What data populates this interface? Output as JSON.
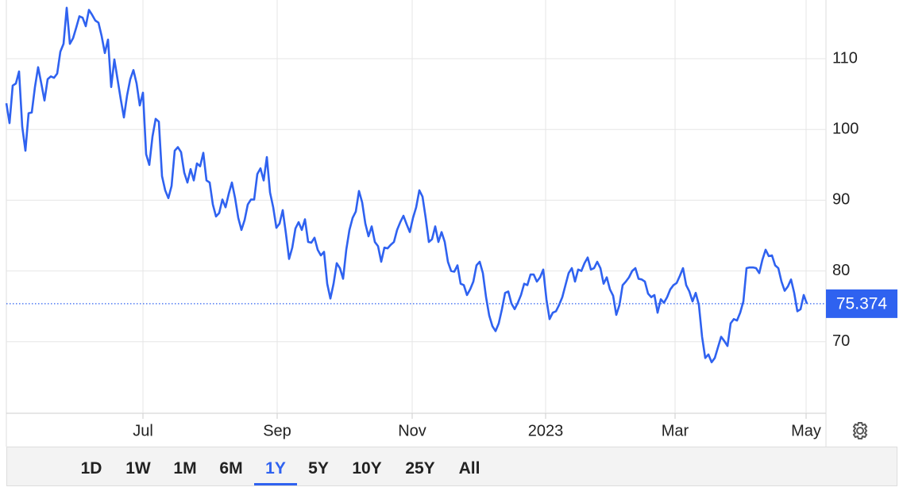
{
  "chart_data": {
    "type": "line",
    "series": [
      {
        "color": "#2f62f0",
        "values": [
          103.7,
          100.9,
          106.2,
          106.5,
          108.2,
          100.4,
          97.0,
          102.3,
          102.4,
          106.0,
          108.8,
          106.5,
          104.1,
          107.1,
          107.5,
          107.3,
          107.9,
          111.0,
          112.1,
          117.2,
          112.1,
          112.9,
          114.4,
          116.0,
          115.8,
          114.6,
          116.9,
          116.2,
          115.4,
          115.1,
          113.2,
          110.8,
          112.7,
          106.0,
          109.9,
          107.1,
          104.3,
          101.7,
          104.8,
          107.1,
          108.4,
          106.5,
          103.4,
          105.2,
          96.5,
          95.0,
          99.0,
          101.5,
          101.1,
          93.4,
          91.4,
          90.3,
          92.0,
          97.0,
          97.5,
          96.8,
          93.9,
          92.5,
          94.4,
          92.8,
          95.2,
          94.8,
          96.7,
          92.8,
          92.5,
          89.4,
          87.7,
          88.2,
          90.1,
          89.0,
          90.9,
          92.5,
          90.3,
          87.5,
          85.8,
          87.2,
          89.4,
          90.1,
          90.1,
          93.7,
          94.5,
          92.8,
          96.1,
          91.1,
          89.0,
          86.1,
          86.7,
          88.6,
          85.3,
          81.7,
          83.3,
          86.0,
          86.9,
          85.8,
          87.3,
          84.1,
          84.0,
          84.7,
          83.0,
          82.2,
          82.7,
          78.2,
          76.1,
          78.2,
          81.1,
          80.4,
          78.9,
          83.0,
          85.8,
          87.5,
          88.4,
          91.3,
          89.7,
          86.7,
          84.9,
          86.3,
          84.1,
          83.5,
          81.3,
          83.3,
          83.2,
          83.7,
          84.1,
          85.8,
          86.9,
          87.8,
          86.6,
          85.5,
          87.5,
          89.0,
          91.4,
          90.5,
          87.5,
          84.1,
          84.5,
          86.3,
          84.1,
          85.5,
          84.1,
          81.3,
          80.0,
          79.9,
          80.8,
          78.2,
          78.0,
          76.6,
          77.4,
          78.5,
          80.8,
          81.3,
          79.7,
          76.3,
          73.7,
          72.2,
          71.5,
          72.6,
          74.6,
          76.9,
          77.1,
          75.4,
          74.6,
          75.5,
          76.6,
          78.2,
          78.0,
          79.5,
          79.5,
          78.5,
          79.1,
          80.2,
          76.0,
          73.2,
          74.1,
          74.3,
          75.2,
          76.3,
          78.0,
          79.7,
          80.4,
          78.5,
          80.2,
          80.0,
          81.1,
          81.9,
          80.2,
          80.4,
          81.3,
          80.4,
          78.2,
          79.1,
          77.4,
          76.5,
          73.8,
          75.2,
          78.0,
          78.5,
          79.1,
          80.0,
          80.4,
          78.9,
          78.8,
          78.5,
          76.8,
          76.3,
          76.6,
          74.1,
          76.0,
          75.5,
          76.3,
          77.4,
          78.0,
          78.3,
          79.3,
          80.4,
          78.0,
          77.1,
          75.7,
          76.9,
          75.2,
          70.7,
          67.7,
          68.2,
          67.1,
          67.7,
          69.2,
          70.7,
          70.1,
          69.4,
          72.6,
          73.2,
          73.0,
          74.1,
          75.7,
          80.4,
          80.5,
          80.5,
          80.4,
          79.7,
          81.6,
          83.0,
          82.1,
          82.2,
          80.8,
          80.4,
          78.5,
          77.2,
          77.8,
          78.8,
          76.9,
          74.3,
          74.6,
          76.6,
          75.374
        ]
      }
    ],
    "xlim": [
      0,
      252
    ],
    "xticks": [
      {
        "value": 43,
        "label": "Jul"
      },
      {
        "value": 85.25,
        "label": "Sep"
      },
      {
        "value": 127.75,
        "label": "Nov"
      },
      {
        "value": 169.75,
        "label": "2023"
      },
      {
        "value": 210.5,
        "label": "Mar"
      },
      {
        "value": 251.75,
        "label": "May"
      }
    ],
    "ylim": [
      60,
      118.3
    ],
    "yticks": [
      70,
      80,
      90,
      100,
      110
    ],
    "grid": true
  },
  "range_buttons": {
    "items": [
      "1D",
      "1W",
      "1M",
      "6M",
      "1Y",
      "5Y",
      "10Y",
      "25Y",
      "All"
    ],
    "selected": "1Y"
  }
}
